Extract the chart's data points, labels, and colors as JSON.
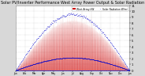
{
  "title": "Solar PV/Inverter Performance West Array Power Output & Solar Radiation",
  "title_fontsize": 3.5,
  "bg_color": "#d8d8d8",
  "plot_bg_color": "#ffffff",
  "red_color": "#cc0000",
  "blue_color": "#0000cc",
  "grid_color": "#aaaaaa",
  "n_points": 525600,
  "y_max": 11.0,
  "y_ticks": [
    0,
    1,
    2,
    3,
    4,
    5,
    6,
    7,
    8,
    9,
    10,
    11
  ],
  "legend_labels": [
    "West Array kW",
    "Solar Radiation W/m²"
  ],
  "legend_colors": [
    "#cc0000",
    "#0000cc"
  ],
  "x_month_pos": [
    0,
    730,
    1416,
    2190,
    2920,
    3650,
    4380,
    5110,
    5840,
    6570,
    7300,
    8030,
    8760
  ],
  "x_month_labels": [
    "Jan",
    "Feb",
    "Mar",
    "Apr",
    "May",
    "Jun",
    "Jul",
    "Aug",
    "Sep",
    "Oct",
    "Nov",
    "Dec",
    "Jan"
  ]
}
